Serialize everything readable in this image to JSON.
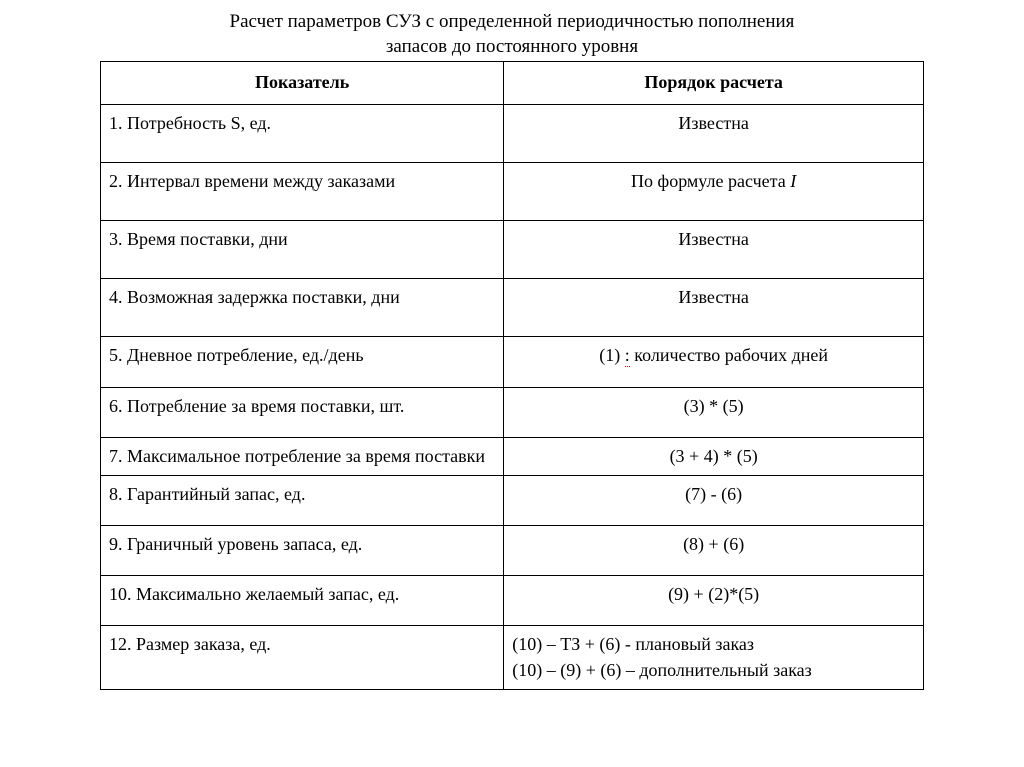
{
  "title_line1": "Расчет параметров СУЗ с определенной периодичностью пополнения",
  "title_line2": "запасов до постоянного уровня",
  "table": {
    "header_left": "Показатель",
    "header_right": "Порядок расчета",
    "columns": [
      "Показатель",
      "Порядок расчета"
    ],
    "column_widths": [
      "49%",
      "51%"
    ],
    "border_color": "#000000",
    "font_family": "Times New Roman",
    "font_size_pt": 14,
    "rows": [
      {
        "left": "1. Потребность S, ед.",
        "right": "Известна",
        "right_align": "center",
        "height": "tall"
      },
      {
        "left": "2. Интервал времени между заказами",
        "right_prefix": "По формуле расчета ",
        "right_italic": "I",
        "right_align": "center",
        "height": "tall"
      },
      {
        "left": "3. Время поставки, дни",
        "right": "Известна",
        "right_align": "center",
        "height": "tall"
      },
      {
        "left": "4. Возможная задержка поставки, дни",
        "right": "Известна",
        "right_align": "center",
        "height": "tall"
      },
      {
        "left": "5. Дневное потребление, ед./день",
        "right_prefix": "(1) ",
        "right_dotted": ":",
        "right_suffix": " количество рабочих дней",
        "right_align": "center",
        "height": "medium"
      },
      {
        "left": "6. Потребление за время поставки, шт.",
        "right": "(3) * (5)",
        "right_align": "center",
        "height": "medium"
      },
      {
        "left": "7. Максимальное потребление за время поставки",
        "right": "(3 + 4) * (5)",
        "right_align": "center",
        "height": "normal"
      },
      {
        "left": "8. Гарантийный запас, ед.",
        "right": "(7) - (6)",
        "right_align": "center",
        "height": "medium"
      },
      {
        "left": "9. Граничный уровень запаса, ед.",
        "right": "(8) + (6)",
        "right_align": "center",
        "height": "medium"
      },
      {
        "left": "10. Максимально желаемый запас, ед.",
        "right": "(9) + (2)*(5)",
        "right_align": "center",
        "height": "medium"
      },
      {
        "left": "12. Размер заказа, ед.",
        "right_line1": "(10) – ТЗ + (6) - плановый заказ",
        "right_line2": "(10) – (9) + (6) – дополнительный заказ",
        "right_align": "left",
        "height": "normal"
      }
    ]
  },
  "colors": {
    "background": "#ffffff",
    "text": "#000000",
    "border": "#000000",
    "dotted_underline": "#cc0000"
  }
}
